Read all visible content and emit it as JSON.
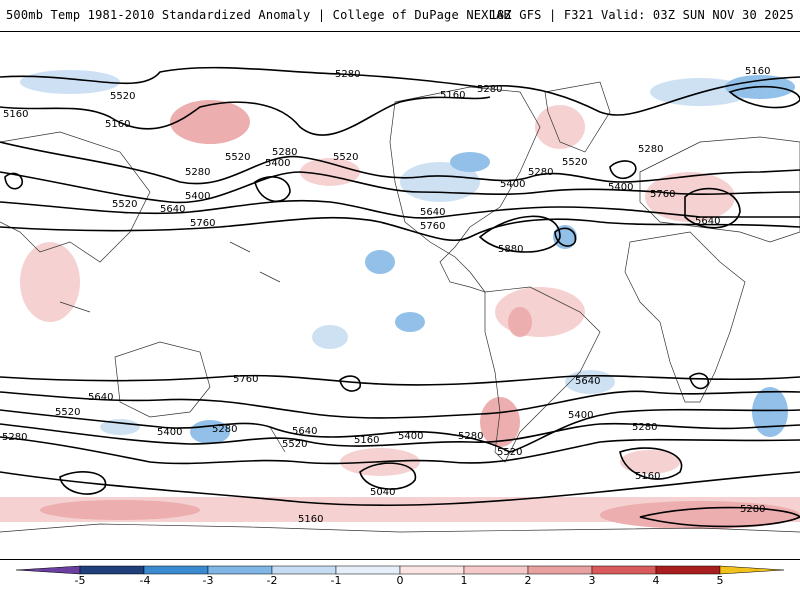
{
  "header": {
    "title_left": "500mb Temp 1981-2010 Standardized Anomaly | College of DuPage NEXLAB",
    "title_right": "18Z GFS | F321 Valid: 03Z SUN NOV 30 2025"
  },
  "map": {
    "contour_labels": [
      "5280",
      "5160",
      "5280",
      "5160",
      "5160",
      "5520",
      "5280",
      "5400",
      "5520",
      "5280",
      "5400",
      "5520",
      "5640",
      "5760",
      "5400",
      "5520",
      "5280",
      "5640",
      "5760",
      "5880",
      "5520",
      "5160",
      "5280",
      "5400",
      "5760",
      "5640",
      "5760",
      "5640",
      "5520",
      "5280",
      "5400",
      "5280",
      "5520",
      "5640",
      "5160",
      "5400",
      "5280",
      "5040",
      "5160",
      "5520",
      "5640",
      "5400",
      "5280",
      "5160",
      "5280"
    ]
  },
  "colorbar": {
    "labels": [
      "-5",
      "-4",
      "-3",
      "-2",
      "-1",
      "0",
      "1",
      "2",
      "3",
      "4",
      "5"
    ],
    "colors": {
      "neg5": "#6a3fa0",
      "neg4": "#1f3f7a",
      "neg3": "#3a8ad0",
      "neg2": "#7fb6e6",
      "neg1": "#c5dcf2",
      "neg0": "#e6eff9",
      "pos0": "#fbe4e4",
      "pos1": "#f5c9c9",
      "pos2": "#e9a0a0",
      "pos3": "#d85a5a",
      "pos4": "#a81e1e",
      "pos5": "#f2c21c"
    }
  }
}
